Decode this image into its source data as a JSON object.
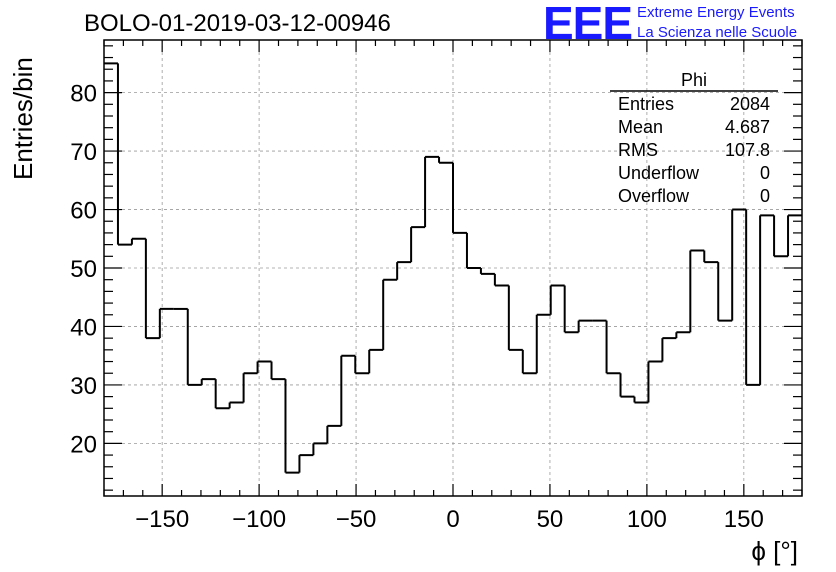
{
  "header": {
    "title": "BOLO-01-2019-03-12-00946",
    "logo_text": "EEE",
    "logo_line1": "Extreme Energy Events",
    "logo_line2": "La Scienza nelle Scuole",
    "logo_color": "#1a1aff"
  },
  "stats_box": {
    "title": "Phi",
    "rows": [
      {
        "label": "Entries",
        "value": "2084"
      },
      {
        "label": "Mean",
        "value": "4.687"
      },
      {
        "label": "RMS",
        "value": "107.8"
      },
      {
        "label": "Underflow",
        "value": "0"
      },
      {
        "label": "Overflow",
        "value": "0"
      }
    ]
  },
  "chart_data": {
    "type": "bar",
    "histogram": true,
    "xlabel": "ϕ [°]",
    "ylabel": "Entries/bin",
    "xlim": [
      -180,
      180
    ],
    "ylim": [
      11,
      89
    ],
    "grid": true,
    "grid_style": "dashed",
    "bin_width": 7.2,
    "bin_edges_start": -180,
    "x_ticks": [
      -150,
      -100,
      -50,
      0,
      50,
      100,
      150
    ],
    "x_tick_labels": [
      "−150",
      "−100",
      "−50",
      "0",
      "50",
      "100",
      "150"
    ],
    "y_ticks": [
      20,
      30,
      40,
      50,
      60,
      70,
      80
    ],
    "y_tick_labels": [
      "20",
      "30",
      "40",
      "50",
      "60",
      "70",
      "80"
    ],
    "values": [
      85,
      54,
      55,
      38,
      43,
      43,
      30,
      31,
      26,
      27,
      32,
      34,
      31,
      15,
      18,
      20,
      23,
      35,
      32,
      36,
      48,
      51,
      57,
      69,
      68,
      56,
      50,
      49,
      47,
      36,
      32,
      42,
      47,
      39,
      41,
      41,
      32,
      28,
      27,
      34,
      38,
      39,
      53,
      51,
      41,
      60,
      30,
      59,
      52,
      59
    ]
  }
}
